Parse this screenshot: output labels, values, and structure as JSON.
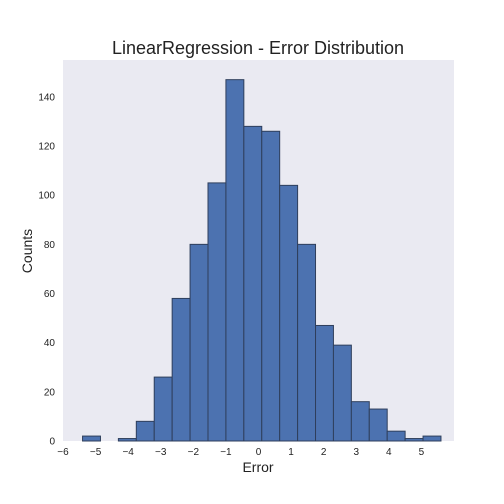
{
  "chart_data": {
    "type": "bar",
    "title": "LinearRegression - Error Distribution",
    "xlabel": "Error",
    "ylabel": "Counts",
    "xlim": [
      -6,
      6
    ],
    "ylim": [
      0,
      155
    ],
    "grid": false,
    "x_ticks": [
      "-6",
      "-5",
      "-4",
      "-3",
      "-2",
      "-1",
      "0",
      "1",
      "2",
      "3",
      "4",
      "5"
    ],
    "y_ticks": [
      "0",
      "20",
      "40",
      "60",
      "80",
      "100",
      "120",
      "140"
    ],
    "bins": [
      {
        "x0": -5.4,
        "x1": -4.85,
        "count": 2
      },
      {
        "x0": -4.85,
        "x1": -4.3,
        "count": 0
      },
      {
        "x0": -4.3,
        "x1": -3.75,
        "count": 1
      },
      {
        "x0": -3.75,
        "x1": -3.2,
        "count": 8
      },
      {
        "x0": -3.2,
        "x1": -2.65,
        "count": 26
      },
      {
        "x0": -2.65,
        "x1": -2.1,
        "count": 58
      },
      {
        "x0": -2.1,
        "x1": -1.55,
        "count": 80
      },
      {
        "x0": -1.55,
        "x1": -1.0,
        "count": 105
      },
      {
        "x0": -1.0,
        "x1": -0.45,
        "count": 147
      },
      {
        "x0": -0.45,
        "x1": 0.1,
        "count": 128
      },
      {
        "x0": 0.1,
        "x1": 0.65,
        "count": 126
      },
      {
        "x0": 0.65,
        "x1": 1.2,
        "count": 104
      },
      {
        "x0": 1.2,
        "x1": 1.75,
        "count": 80
      },
      {
        "x0": 1.75,
        "x1": 2.3,
        "count": 47
      },
      {
        "x0": 2.3,
        "x1": 2.85,
        "count": 39
      },
      {
        "x0": 2.85,
        "x1": 3.4,
        "count": 16
      },
      {
        "x0": 3.4,
        "x1": 3.95,
        "count": 13
      },
      {
        "x0": 3.95,
        "x1": 4.5,
        "count": 4
      },
      {
        "x0": 4.5,
        "x1": 5.05,
        "count": 1
      },
      {
        "x0": 5.05,
        "x1": 5.6,
        "count": 2
      }
    ],
    "colors": {
      "bar_fill": "#4c72b0",
      "bar_edge": "#2f3f5c",
      "plot_background": "#eaeaf2"
    }
  }
}
